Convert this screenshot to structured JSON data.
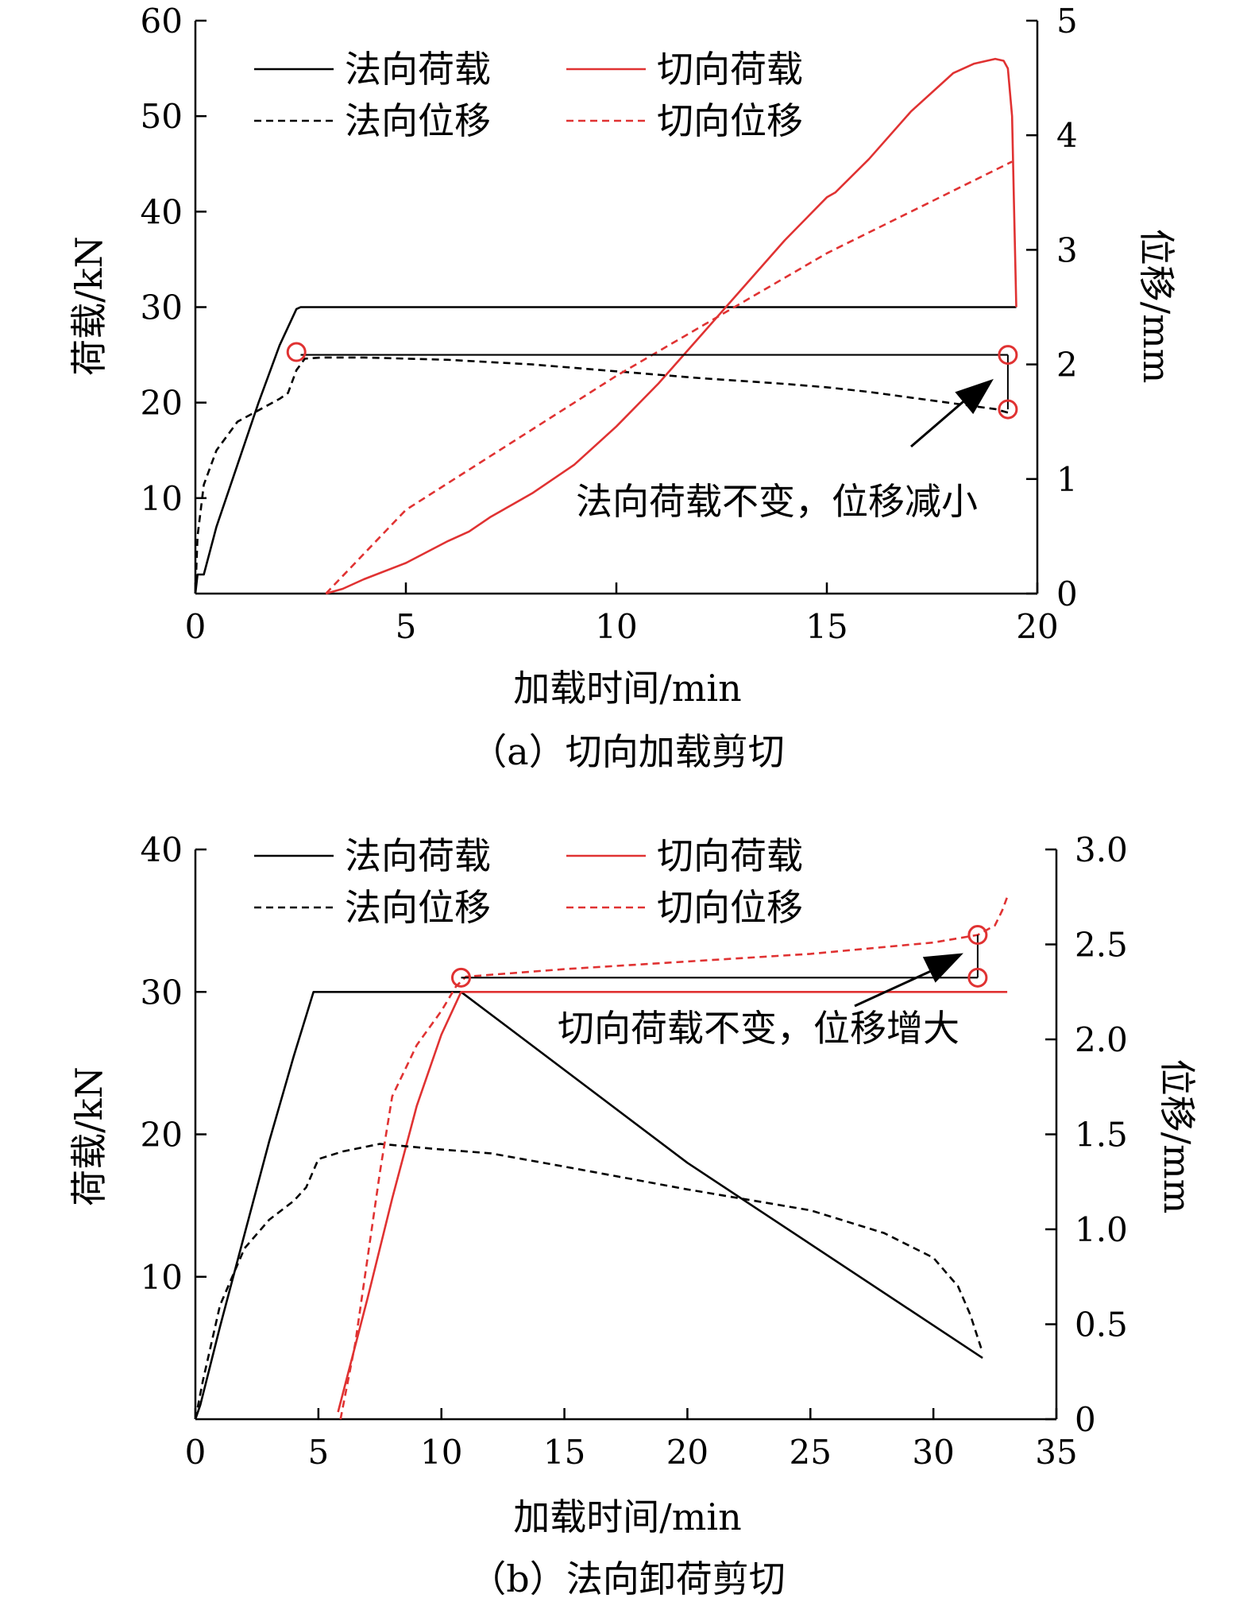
{
  "legend": {
    "normal_load": "法向荷载",
    "shear_load": "切向荷载",
    "normal_disp": "法向位移",
    "shear_disp": "切向位移"
  },
  "colors": {
    "black": "#000000",
    "red": "#e03232"
  },
  "chart_data": [
    {
      "type": "line",
      "caption": "（a）切向加载剪切",
      "xlabel": "加载时间/min",
      "ylabel_left": "荷载/kN",
      "ylabel_right": "位移/mm",
      "xlim": [
        0,
        20
      ],
      "ylim_left": [
        0,
        60
      ],
      "ylim_right": [
        0,
        5
      ],
      "xticks": [
        0,
        5,
        10,
        15,
        20
      ],
      "yticks_left": [
        10,
        20,
        30,
        40,
        50,
        60
      ],
      "yticks_right": [
        0,
        1,
        2,
        3,
        4,
        5
      ],
      "legend_position": "top",
      "grid": false,
      "annotation": "法向荷载不变，位移减小",
      "series": [
        {
          "name": "法向荷载",
          "axis": "left",
          "color": "#000000",
          "dash": false,
          "x": [
            0,
            0.05,
            0.2,
            0.5,
            1.0,
            1.5,
            2.0,
            2.4,
            2.5,
            2.6,
            3.0,
            5,
            10,
            15,
            19.3,
            19.4,
            19.45,
            19.5
          ],
          "y": [
            0,
            2,
            2,
            7,
            13.5,
            20,
            26,
            29.8,
            30,
            30,
            30,
            30,
            30,
            30,
            30,
            30,
            30,
            30
          ]
        },
        {
          "name": "切向荷载",
          "axis": "left",
          "color": "#e03232",
          "dash": false,
          "x": [
            3.1,
            3.5,
            4.0,
            5.0,
            6.0,
            6.5,
            7.0,
            8.0,
            9.0,
            10.0,
            11.0,
            12.0,
            13.0,
            14.0,
            15.0,
            15.2,
            16.0,
            17.0,
            18.0,
            18.5,
            19.0,
            19.2,
            19.3,
            19.4,
            19.45,
            19.5
          ],
          "y": [
            0,
            0.5,
            1.5,
            3.2,
            5.5,
            6.5,
            8.0,
            10.5,
            13.5,
            17.5,
            22.0,
            27.0,
            32.0,
            37.0,
            41.5,
            42.0,
            45.5,
            50.5,
            54.5,
            55.5,
            56.0,
            55.8,
            55.0,
            50.0,
            40.0,
            30.0
          ]
        },
        {
          "name": "法向位移",
          "axis": "right",
          "color": "#000000",
          "dash": true,
          "x": [
            0,
            0.05,
            0.2,
            0.5,
            1.0,
            1.5,
            2.0,
            2.2,
            2.4,
            2.6,
            3.0,
            4.0,
            6.0,
            8.0,
            10.0,
            12.0,
            14.0,
            15.0,
            16.0,
            17.0,
            18.0,
            19.0,
            19.3
          ],
          "y": [
            0,
            0.5,
            0.95,
            1.25,
            1.5,
            1.6,
            1.7,
            1.75,
            1.95,
            2.05,
            2.06,
            2.06,
            2.04,
            2.0,
            1.94,
            1.88,
            1.83,
            1.8,
            1.76,
            1.71,
            1.66,
            1.61,
            1.58
          ]
        },
        {
          "name": "切向位移",
          "axis": "right",
          "color": "#e03232",
          "dash": true,
          "x": [
            3.1,
            5,
            10,
            15,
            19.4
          ],
          "y": [
            0,
            0.73,
            1.9,
            2.97,
            3.77
          ]
        }
      ],
      "markers": [
        {
          "axis": "left",
          "x": 2.4,
          "y": 25.3
        },
        {
          "axis": "left",
          "x": 19.3,
          "y": 25
        },
        {
          "axis": "left",
          "x": 19.3,
          "y": 19.3
        }
      ],
      "hline": {
        "axis": "left",
        "y": 25,
        "x": [
          2.5,
          19.3
        ]
      }
    },
    {
      "type": "line",
      "caption": "（b）法向卸荷剪切",
      "xlabel": "加载时间/min",
      "ylabel_left": "荷载/kN",
      "ylabel_right": "位移/mm",
      "xlim": [
        0,
        35
      ],
      "ylim_left": [
        0,
        40
      ],
      "ylim_right": [
        0,
        3.0
      ],
      "xticks": [
        0,
        5,
        10,
        15,
        20,
        25,
        30,
        35
      ],
      "yticks_left": [
        10,
        20,
        30,
        40
      ],
      "yticks_right": [
        0,
        0.5,
        1.0,
        1.5,
        2.0,
        2.5,
        3.0
      ],
      "yticks_right_labels": [
        "0",
        "0.5",
        "1.0",
        "1.5",
        "2.0",
        "2.5",
        "3.0"
      ],
      "legend_position": "top",
      "grid": false,
      "annotation": "切向荷载不变，位移增大",
      "series": [
        {
          "name": "法向荷载",
          "axis": "left",
          "color": "#000000",
          "dash": false,
          "x": [
            0,
            0.2,
            1.0,
            2.0,
            3.0,
            4.0,
            4.8,
            5.0,
            6.0,
            8.0,
            10.0,
            10.8,
            20.0,
            32.0
          ],
          "y": [
            0,
            1,
            6.5,
            13,
            19.5,
            25.5,
            30.0,
            30.0,
            30.0,
            30.0,
            30.0,
            30.0,
            18.0,
            4.3
          ]
        },
        {
          "name": "切向荷载",
          "axis": "left",
          "color": "#e03232",
          "dash": false,
          "x": [
            5.8,
            7.0,
            8.0,
            9.0,
            10.0,
            10.8,
            11.0,
            15.0,
            20.0,
            25.0,
            30.0,
            32.0,
            33.0
          ],
          "y": [
            0.5,
            8.5,
            15.5,
            22.0,
            27.0,
            30.0,
            30.0,
            30.0,
            30.0,
            30.0,
            30.0,
            30.0,
            30.0
          ]
        },
        {
          "name": "法向位移",
          "axis": "right",
          "color": "#000000",
          "dash": true,
          "x": [
            0,
            0.3,
            1.0,
            2.0,
            3.0,
            4.0,
            4.5,
            5.0,
            6.0,
            7.5,
            10.0,
            12.0,
            15.0,
            20.0,
            25.0,
            28.0,
            30.0,
            31.0,
            31.5,
            32.0
          ],
          "y": [
            0,
            0.2,
            0.6,
            0.9,
            1.05,
            1.15,
            1.22,
            1.37,
            1.41,
            1.45,
            1.42,
            1.4,
            1.33,
            1.21,
            1.1,
            0.98,
            0.85,
            0.7,
            0.55,
            0.35
          ]
        },
        {
          "name": "切向位移",
          "axis": "right",
          "color": "#e03232",
          "dash": true,
          "x": [
            5.9,
            6.5,
            7.0,
            7.5,
            8.0,
            9.0,
            10.0,
            10.6,
            11.0,
            15.0,
            20.0,
            25.0,
            30.0,
            31.8,
            32.5,
            32.8,
            33.0
          ],
          "y": [
            0,
            0.4,
            0.85,
            1.3,
            1.7,
            1.97,
            2.15,
            2.28,
            2.33,
            2.37,
            2.41,
            2.45,
            2.51,
            2.55,
            2.6,
            2.68,
            2.75
          ]
        }
      ],
      "markers": [
        {
          "axis": "left",
          "x": 10.8,
          "y": 31.0
        },
        {
          "axis": "left",
          "x": 31.8,
          "y": 34.0
        },
        {
          "axis": "left",
          "x": 31.8,
          "y": 31.0
        }
      ],
      "hline": {
        "axis": "left",
        "y": 31.0,
        "x": [
          10.8,
          31.8
        ]
      }
    }
  ]
}
